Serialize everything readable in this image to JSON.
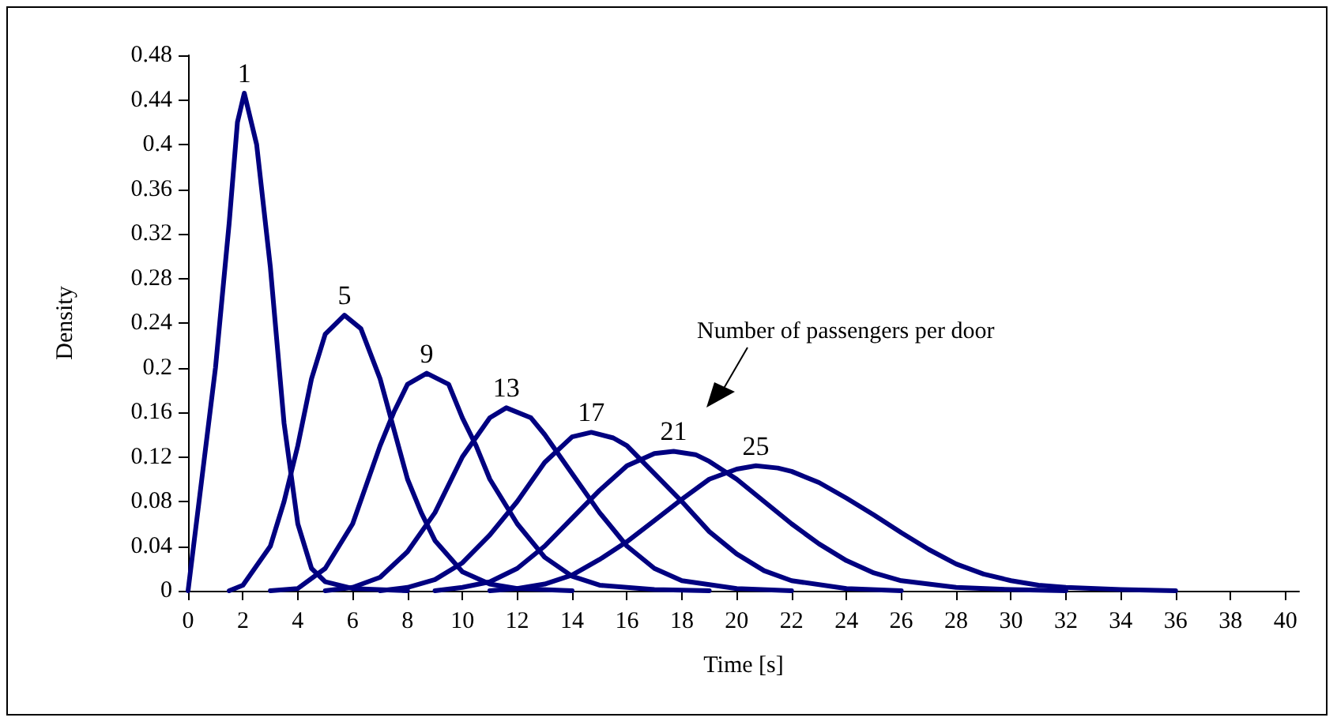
{
  "chart_data": {
    "type": "line",
    "xlabel": "Time [s]",
    "ylabel": "Density",
    "xlim": [
      0,
      40.5
    ],
    "xticks": [
      0,
      2,
      4,
      6,
      8,
      10,
      12,
      14,
      16,
      18,
      20,
      22,
      24,
      26,
      28,
      30,
      32,
      34,
      36,
      38,
      40
    ],
    "ylim": [
      0,
      0.48
    ],
    "yticks": [
      0,
      0.04,
      0.08,
      0.12,
      0.16,
      0.2,
      0.24,
      0.28,
      0.32,
      0.36,
      0.4,
      0.44,
      0.48
    ],
    "grid": false,
    "legend": false,
    "marker": "none",
    "line_style": "solid",
    "annotations": [
      "Number of passengers per door"
    ],
    "series": [
      {
        "name": "1",
        "color": "#000080",
        "x": [
          0,
          0.5,
          1,
          1.5,
          1.8,
          2.05,
          2.5,
          3,
          3.5,
          4,
          4.5,
          5,
          6,
          8
        ],
        "values": [
          0,
          0.1,
          0.2,
          0.33,
          0.42,
          0.446,
          0.4,
          0.29,
          0.15,
          0.06,
          0.02,
          0.008,
          0.002,
          0
        ]
      },
      {
        "name": "5",
        "color": "#000080",
        "x": [
          1.5,
          2,
          3,
          3.5,
          4,
          4.5,
          5,
          5.7,
          6.3,
          7,
          7.5,
          8,
          8.5,
          9,
          10,
          11,
          12,
          14
        ],
        "values": [
          0,
          0.005,
          0.04,
          0.08,
          0.13,
          0.19,
          0.23,
          0.247,
          0.235,
          0.19,
          0.145,
          0.1,
          0.07,
          0.045,
          0.017,
          0.006,
          0.002,
          0
        ]
      },
      {
        "name": "9",
        "color": "#000080",
        "x": [
          3,
          4,
          5,
          6,
          7,
          7.5,
          8,
          8.7,
          9.5,
          10,
          10.5,
          11,
          12,
          13,
          14,
          15,
          17,
          19
        ],
        "values": [
          0,
          0.002,
          0.02,
          0.06,
          0.13,
          0.16,
          0.185,
          0.195,
          0.185,
          0.155,
          0.13,
          0.1,
          0.06,
          0.03,
          0.013,
          0.005,
          0.001,
          0
        ]
      },
      {
        "name": "13",
        "color": "#000080",
        "x": [
          5,
          6,
          7,
          8,
          9,
          10,
          11,
          11.6,
          12.5,
          13,
          14,
          15,
          16,
          17,
          18,
          20,
          22
        ],
        "values": [
          0,
          0.003,
          0.012,
          0.035,
          0.07,
          0.12,
          0.155,
          0.164,
          0.155,
          0.14,
          0.105,
          0.07,
          0.04,
          0.02,
          0.009,
          0.002,
          0
        ]
      },
      {
        "name": "17",
        "color": "#000080",
        "x": [
          7,
          8,
          9,
          10,
          11,
          12,
          13,
          14,
          14.7,
          15.5,
          16,
          17,
          18,
          19,
          20,
          21,
          22,
          24,
          26
        ],
        "values": [
          0,
          0.003,
          0.01,
          0.025,
          0.05,
          0.08,
          0.115,
          0.138,
          0.142,
          0.137,
          0.13,
          0.105,
          0.08,
          0.053,
          0.033,
          0.018,
          0.009,
          0.002,
          0
        ]
      },
      {
        "name": "21",
        "color": "#000080",
        "x": [
          9,
          10,
          11,
          12,
          13,
          14,
          15,
          16,
          17,
          17.7,
          18.5,
          19,
          20,
          21,
          22,
          23,
          24,
          25,
          26,
          28,
          30,
          32
        ],
        "values": [
          0,
          0.003,
          0.008,
          0.02,
          0.04,
          0.065,
          0.09,
          0.112,
          0.123,
          0.125,
          0.122,
          0.116,
          0.1,
          0.08,
          0.06,
          0.042,
          0.027,
          0.016,
          0.009,
          0.003,
          0.001,
          0
        ]
      },
      {
        "name": "25",
        "color": "#000080",
        "x": [
          11,
          12,
          13,
          14,
          15,
          16,
          17,
          18,
          19,
          20,
          20.7,
          21.5,
          22,
          23,
          24,
          25,
          26,
          27,
          28,
          29,
          30,
          31,
          32,
          34,
          36
        ],
        "values": [
          0,
          0.002,
          0.006,
          0.014,
          0.028,
          0.044,
          0.063,
          0.082,
          0.1,
          0.109,
          0.112,
          0.11,
          0.107,
          0.097,
          0.083,
          0.068,
          0.052,
          0.037,
          0.024,
          0.015,
          0.009,
          0.005,
          0.003,
          0.001,
          0
        ]
      }
    ]
  }
}
